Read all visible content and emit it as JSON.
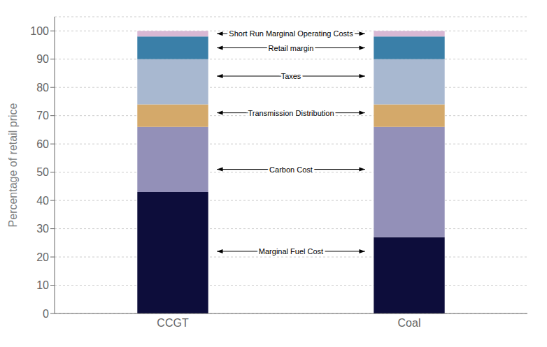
{
  "chart_data": {
    "type": "bar",
    "stacked": true,
    "categories": [
      "CCGT",
      "Coal"
    ],
    "series": [
      {
        "color": "#0d0d3b",
        "values": [
          43,
          27
        ]
      },
      {
        "color": "#9390b8",
        "values": [
          23,
          39
        ]
      },
      {
        "color": "#d4a96a",
        "values": [
          8,
          8
        ]
      },
      {
        "color": "#a8b8d0",
        "values": [
          16,
          16
        ]
      },
      {
        "color": "#3a7fa8",
        "values": [
          8,
          8
        ]
      },
      {
        "color": "#d8b8d4",
        "values": [
          2,
          2
        ]
      }
    ],
    "ylabel": "Percentage of retail price",
    "ylim": [
      0,
      105
    ],
    "yticks": [
      0,
      10,
      20,
      30,
      40,
      50,
      60,
      70,
      80,
      90,
      100
    ],
    "grid": true,
    "annotations": [
      {
        "text": "Short Run Marginal Operating Costs",
        "y": 99
      },
      {
        "text": "Retail margin",
        "y": 94
      },
      {
        "text": "Taxes",
        "y": 84
      },
      {
        "text": "Transmission Distribution",
        "y": 71
      },
      {
        "text": "Carbon Cost",
        "y": 51
      },
      {
        "text": "Marginal Fuel Cost",
        "y": 22
      }
    ]
  }
}
